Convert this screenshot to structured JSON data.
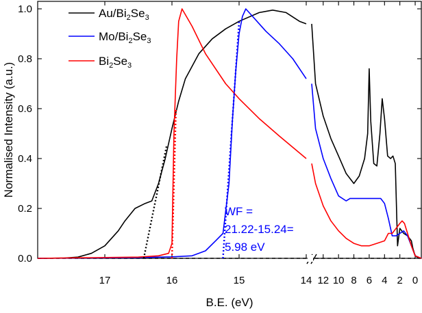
{
  "chart_data": {
    "type": "line",
    "xlabel": "B.E. (eV)",
    "ylabel": "Normalised Intensity (a.u.)",
    "x_axis": {
      "reversed": true,
      "broken": true,
      "segments": [
        {
          "range": [
            18.0,
            14.0
          ],
          "ticks": [
            17,
            16,
            15,
            14
          ]
        },
        {
          "range": [
            13.5,
            -0.8
          ],
          "ticks": [
            12,
            10,
            8,
            6,
            4,
            2,
            0
          ]
        }
      ]
    },
    "ylim": [
      0,
      1.03
    ],
    "yticks": [
      0.0,
      0.2,
      0.4,
      0.6,
      0.8,
      1.0
    ],
    "tick_format": {
      "y_decimals": 1
    },
    "series": [
      {
        "name": "Au/Bi2Se3",
        "color": "#000000",
        "points": [
          [
            18.0,
            0.0
          ],
          [
            17.6,
            0.001
          ],
          [
            17.4,
            0.005
          ],
          [
            17.2,
            0.02
          ],
          [
            17.0,
            0.05
          ],
          [
            16.8,
            0.11
          ],
          [
            16.7,
            0.15
          ],
          [
            16.55,
            0.2
          ],
          [
            16.4,
            0.22
          ],
          [
            16.3,
            0.23
          ],
          [
            16.2,
            0.3
          ],
          [
            16.1,
            0.4
          ],
          [
            16.0,
            0.52
          ],
          [
            15.9,
            0.63
          ],
          [
            15.8,
            0.72
          ],
          [
            15.6,
            0.82
          ],
          [
            15.4,
            0.88
          ],
          [
            15.2,
            0.92
          ],
          [
            15.0,
            0.95
          ],
          [
            14.7,
            0.985
          ],
          [
            14.5,
            0.995
          ],
          [
            14.3,
            0.985
          ],
          [
            14.1,
            0.95
          ],
          [
            14.0,
            0.94
          ],
          [
            13.5,
            0.94
          ],
          [
            13.0,
            0.7
          ],
          [
            12.0,
            0.57
          ],
          [
            11.0,
            0.48
          ],
          [
            10.0,
            0.41
          ],
          [
            9.0,
            0.34
          ],
          [
            8.0,
            0.3
          ],
          [
            7.3,
            0.33
          ],
          [
            6.6,
            0.4
          ],
          [
            6.2,
            0.5
          ],
          [
            6.0,
            0.76
          ],
          [
            5.8,
            0.55
          ],
          [
            5.4,
            0.38
          ],
          [
            5.0,
            0.37
          ],
          [
            4.6,
            0.5
          ],
          [
            4.3,
            0.64
          ],
          [
            4.0,
            0.56
          ],
          [
            3.6,
            0.41
          ],
          [
            3.2,
            0.4
          ],
          [
            2.9,
            0.41
          ],
          [
            2.6,
            0.38
          ],
          [
            2.3,
            0.05
          ],
          [
            2.0,
            0.12
          ],
          [
            1.5,
            0.1
          ],
          [
            1.0,
            0.09
          ],
          [
            0.5,
            0.07
          ],
          [
            0.3,
            0.04
          ],
          [
            0.0,
            0.01
          ],
          [
            -0.5,
            0.0
          ],
          [
            -0.8,
            0.0
          ]
        ]
      },
      {
        "name": "Mo/Bi2Se3",
        "color": "#0000ff",
        "points": [
          [
            18.0,
            0.0
          ],
          [
            16.5,
            0.003
          ],
          [
            16.0,
            0.006
          ],
          [
            15.7,
            0.01
          ],
          [
            15.5,
            0.03
          ],
          [
            15.35,
            0.07
          ],
          [
            15.24,
            0.1
          ],
          [
            15.15,
            0.3
          ],
          [
            15.1,
            0.55
          ],
          [
            15.05,
            0.75
          ],
          [
            15.0,
            0.9
          ],
          [
            14.95,
            0.97
          ],
          [
            14.9,
            1.0
          ],
          [
            14.8,
            0.97
          ],
          [
            14.6,
            0.91
          ],
          [
            14.4,
            0.86
          ],
          [
            14.2,
            0.8
          ],
          [
            14.0,
            0.72
          ],
          [
            13.5,
            0.7
          ],
          [
            13.0,
            0.52
          ],
          [
            12.0,
            0.4
          ],
          [
            11.0,
            0.32
          ],
          [
            10.0,
            0.25
          ],
          [
            9.0,
            0.23
          ],
          [
            8.5,
            0.24
          ],
          [
            7.0,
            0.24
          ],
          [
            5.0,
            0.24
          ],
          [
            4.5,
            0.24
          ],
          [
            4.0,
            0.22
          ],
          [
            3.5,
            0.16
          ],
          [
            3.0,
            0.09
          ],
          [
            2.5,
            0.09
          ],
          [
            2.0,
            0.1
          ],
          [
            1.5,
            0.11
          ],
          [
            1.0,
            0.09
          ],
          [
            0.5,
            0.05
          ],
          [
            0.0,
            0.01
          ],
          [
            -0.8,
            0.0
          ]
        ]
      },
      {
        "name": "Bi2Se3",
        "color": "#ff0000",
        "points": [
          [
            18.0,
            0.0
          ],
          [
            16.5,
            0.005
          ],
          [
            16.2,
            0.01
          ],
          [
            16.05,
            0.02
          ],
          [
            16.0,
            0.06
          ],
          [
            15.97,
            0.5
          ],
          [
            15.93,
            0.8
          ],
          [
            15.9,
            0.95
          ],
          [
            15.85,
            1.0
          ],
          [
            15.7,
            0.93
          ],
          [
            15.5,
            0.82
          ],
          [
            15.2,
            0.7
          ],
          [
            15.0,
            0.64
          ],
          [
            14.7,
            0.56
          ],
          [
            14.4,
            0.49
          ],
          [
            14.0,
            0.4
          ],
          [
            13.5,
            0.38
          ],
          [
            13.0,
            0.3
          ],
          [
            12.0,
            0.21
          ],
          [
            11.0,
            0.15
          ],
          [
            10.0,
            0.11
          ],
          [
            9.0,
            0.08
          ],
          [
            8.0,
            0.06
          ],
          [
            7.0,
            0.05
          ],
          [
            6.0,
            0.05
          ],
          [
            5.0,
            0.06
          ],
          [
            4.0,
            0.07
          ],
          [
            3.5,
            0.1
          ],
          [
            3.0,
            0.1
          ],
          [
            2.5,
            0.12
          ],
          [
            2.0,
            0.14
          ],
          [
            1.7,
            0.15
          ],
          [
            1.4,
            0.14
          ],
          [
            1.0,
            0.1
          ],
          [
            0.5,
            0.05
          ],
          [
            0.0,
            0.01
          ],
          [
            -0.8,
            0.0
          ]
        ]
      }
    ],
    "extrapolation_lines": [
      {
        "series": "Au/Bi2Se3",
        "color": "#000000",
        "from": [
          16.42,
          0.0
        ],
        "to": [
          16.08,
          0.45
        ]
      },
      {
        "series": "Bi2Se3",
        "color": "#ff0000",
        "from": [
          16.0,
          0.0
        ],
        "to": [
          15.94,
          0.6
        ]
      },
      {
        "series": "Mo/Bi2Se3",
        "color": "#0000ff",
        "from": [
          15.24,
          0.0
        ],
        "to": [
          15.0,
          0.95
        ]
      }
    ],
    "baseline": {
      "y": 0.0,
      "from": 18.0,
      "to": 0.0,
      "style": "dashed",
      "color": "#000000"
    },
    "legend": {
      "position": "top-left",
      "entries": [
        {
          "series": "Au/Bi2Se3",
          "base": "Au/Bi",
          "sub1": "2",
          "mid": "Se",
          "sub2": "3",
          "color": "#000000"
        },
        {
          "series": "Mo/Bi2Se3",
          "base": "Mo/Bi",
          "sub1": "2",
          "mid": "Se",
          "sub2": "3",
          "color": "#0000ff"
        },
        {
          "series": "Bi2Se3",
          "base": "Bi",
          "sub1": "2",
          "mid": "Se",
          "sub2": "3",
          "color": "#ff0000"
        }
      ]
    },
    "annotation": {
      "lines": [
        "WF =",
        "21.22-15.24=",
        "5.98 eV"
      ],
      "color": "#0000ff"
    }
  }
}
